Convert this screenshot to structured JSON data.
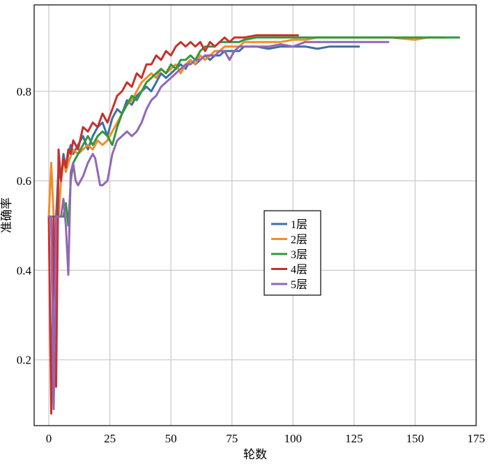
{
  "chart_data": {
    "type": "line",
    "title": "",
    "xlabel": "轮数",
    "ylabel": "准确率",
    "xlim": [
      -6,
      175
    ],
    "ylim": [
      0.053,
      0.993
    ],
    "xticks": [
      0,
      25,
      50,
      75,
      100,
      125,
      150,
      175
    ],
    "yticks": [
      0.2,
      0.4,
      0.6,
      0.8
    ],
    "xtick_labels": [
      "0",
      "25",
      "50",
      "75",
      "100",
      "125",
      "150",
      "175"
    ],
    "ytick_labels": [
      "0.2",
      "0.4",
      "0.6",
      "0.8"
    ],
    "grid": true,
    "legend_position": "center-right",
    "series": [
      {
        "name": "1层",
        "color": "#3e6fa5",
        "points": [
          [
            0,
            0.52
          ],
          [
            1,
            0.52
          ],
          [
            2,
            0.1
          ],
          [
            3,
            0.52
          ],
          [
            4,
            0.63
          ],
          [
            5,
            0.6
          ],
          [
            6,
            0.66
          ],
          [
            7,
            0.63
          ],
          [
            8,
            0.66
          ],
          [
            9,
            0.68
          ],
          [
            10,
            0.66
          ],
          [
            12,
            0.68
          ],
          [
            14,
            0.7
          ],
          [
            16,
            0.67
          ],
          [
            18,
            0.7
          ],
          [
            20,
            0.72
          ],
          [
            22,
            0.73
          ],
          [
            24,
            0.7
          ],
          [
            26,
            0.74
          ],
          [
            28,
            0.76
          ],
          [
            30,
            0.75
          ],
          [
            32,
            0.78
          ],
          [
            34,
            0.77
          ],
          [
            36,
            0.79
          ],
          [
            38,
            0.8
          ],
          [
            40,
            0.81
          ],
          [
            42,
            0.8
          ],
          [
            44,
            0.82
          ],
          [
            46,
            0.84
          ],
          [
            48,
            0.83
          ],
          [
            50,
            0.84
          ],
          [
            52,
            0.85
          ],
          [
            54,
            0.86
          ],
          [
            56,
            0.85
          ],
          [
            58,
            0.87
          ],
          [
            60,
            0.86
          ],
          [
            62,
            0.87
          ],
          [
            64,
            0.88
          ],
          [
            66,
            0.87
          ],
          [
            68,
            0.88
          ],
          [
            70,
            0.88
          ],
          [
            72,
            0.89
          ],
          [
            75,
            0.89
          ],
          [
            78,
            0.89
          ],
          [
            80,
            0.9
          ],
          [
            85,
            0.9
          ],
          [
            90,
            0.895
          ],
          [
            95,
            0.9
          ],
          [
            100,
            0.9
          ],
          [
            105,
            0.9
          ],
          [
            110,
            0.895
          ],
          [
            115,
            0.9
          ],
          [
            120,
            0.9
          ],
          [
            127,
            0.9
          ]
        ]
      },
      {
        "name": "2层",
        "color": "#f28c28",
        "points": [
          [
            0,
            0.52
          ],
          [
            1,
            0.64
          ],
          [
            2,
            0.52
          ],
          [
            3,
            0.52
          ],
          [
            4,
            0.52
          ],
          [
            5,
            0.6
          ],
          [
            6,
            0.65
          ],
          [
            7,
            0.62
          ],
          [
            8,
            0.64
          ],
          [
            10,
            0.67
          ],
          [
            12,
            0.66
          ],
          [
            14,
            0.67
          ],
          [
            16,
            0.68
          ],
          [
            18,
            0.67
          ],
          [
            20,
            0.69
          ],
          [
            22,
            0.68
          ],
          [
            24,
            0.69
          ],
          [
            26,
            0.71
          ],
          [
            28,
            0.73
          ],
          [
            30,
            0.75
          ],
          [
            32,
            0.77
          ],
          [
            34,
            0.78
          ],
          [
            36,
            0.8
          ],
          [
            38,
            0.82
          ],
          [
            40,
            0.83
          ],
          [
            42,
            0.84
          ],
          [
            44,
            0.83
          ],
          [
            46,
            0.85
          ],
          [
            48,
            0.84
          ],
          [
            50,
            0.85
          ],
          [
            52,
            0.86
          ],
          [
            54,
            0.84
          ],
          [
            56,
            0.86
          ],
          [
            58,
            0.87
          ],
          [
            60,
            0.86
          ],
          [
            62,
            0.88
          ],
          [
            64,
            0.87
          ],
          [
            66,
            0.88
          ],
          [
            68,
            0.89
          ],
          [
            70,
            0.89
          ],
          [
            72,
            0.9
          ],
          [
            75,
            0.9
          ],
          [
            78,
            0.9
          ],
          [
            80,
            0.91
          ],
          [
            85,
            0.91
          ],
          [
            90,
            0.91
          ],
          [
            95,
            0.91
          ],
          [
            100,
            0.915
          ],
          [
            105,
            0.915
          ],
          [
            110,
            0.92
          ],
          [
            115,
            0.92
          ],
          [
            120,
            0.92
          ],
          [
            130,
            0.92
          ],
          [
            140,
            0.92
          ],
          [
            150,
            0.915
          ],
          [
            155,
            0.92
          ],
          [
            162,
            0.92
          ]
        ]
      },
      {
        "name": "3层",
        "color": "#2e9a3a",
        "points": [
          [
            0,
            0.52
          ],
          [
            1,
            0.52
          ],
          [
            2,
            0.52
          ],
          [
            3,
            0.52
          ],
          [
            4,
            0.52
          ],
          [
            5,
            0.52
          ],
          [
            6,
            0.52
          ],
          [
            7,
            0.55
          ],
          [
            8,
            0.5
          ],
          [
            9,
            0.6
          ],
          [
            10,
            0.64
          ],
          [
            12,
            0.66
          ],
          [
            14,
            0.68
          ],
          [
            16,
            0.7
          ],
          [
            18,
            0.68
          ],
          [
            20,
            0.7
          ],
          [
            22,
            0.71
          ],
          [
            24,
            0.7
          ],
          [
            26,
            0.68
          ],
          [
            28,
            0.72
          ],
          [
            30,
            0.75
          ],
          [
            32,
            0.77
          ],
          [
            34,
            0.79
          ],
          [
            36,
            0.78
          ],
          [
            38,
            0.8
          ],
          [
            40,
            0.82
          ],
          [
            42,
            0.83
          ],
          [
            44,
            0.84
          ],
          [
            46,
            0.85
          ],
          [
            48,
            0.84
          ],
          [
            50,
            0.86
          ],
          [
            52,
            0.85
          ],
          [
            54,
            0.87
          ],
          [
            56,
            0.87
          ],
          [
            58,
            0.88
          ],
          [
            60,
            0.87
          ],
          [
            62,
            0.89
          ],
          [
            64,
            0.9
          ],
          [
            66,
            0.9
          ],
          [
            68,
            0.9
          ],
          [
            70,
            0.91
          ],
          [
            72,
            0.91
          ],
          [
            75,
            0.91
          ],
          [
            78,
            0.91
          ],
          [
            80,
            0.915
          ],
          [
            85,
            0.92
          ],
          [
            90,
            0.92
          ],
          [
            95,
            0.92
          ],
          [
            100,
            0.92
          ],
          [
            110,
            0.92
          ],
          [
            120,
            0.92
          ],
          [
            130,
            0.92
          ],
          [
            140,
            0.92
          ],
          [
            150,
            0.92
          ],
          [
            160,
            0.92
          ],
          [
            168,
            0.92
          ]
        ]
      },
      {
        "name": "4层",
        "color": "#c9302c",
        "points": [
          [
            0,
            0.52
          ],
          [
            1,
            0.08
          ],
          [
            2,
            0.52
          ],
          [
            3,
            0.14
          ],
          [
            4,
            0.67
          ],
          [
            5,
            0.6
          ],
          [
            6,
            0.65
          ],
          [
            7,
            0.63
          ],
          [
            8,
            0.67
          ],
          [
            9,
            0.66
          ],
          [
            10,
            0.69
          ],
          [
            12,
            0.67
          ],
          [
            14,
            0.72
          ],
          [
            16,
            0.71
          ],
          [
            18,
            0.73
          ],
          [
            20,
            0.72
          ],
          [
            22,
            0.75
          ],
          [
            24,
            0.73
          ],
          [
            26,
            0.76
          ],
          [
            28,
            0.79
          ],
          [
            30,
            0.8
          ],
          [
            32,
            0.82
          ],
          [
            34,
            0.81
          ],
          [
            36,
            0.84
          ],
          [
            38,
            0.83
          ],
          [
            40,
            0.86
          ],
          [
            42,
            0.86
          ],
          [
            44,
            0.88
          ],
          [
            46,
            0.87
          ],
          [
            48,
            0.89
          ],
          [
            50,
            0.88
          ],
          [
            52,
            0.9
          ],
          [
            54,
            0.91
          ],
          [
            56,
            0.9
          ],
          [
            58,
            0.91
          ],
          [
            60,
            0.9
          ],
          [
            62,
            0.91
          ],
          [
            64,
            0.89
          ],
          [
            66,
            0.91
          ],
          [
            68,
            0.9
          ],
          [
            70,
            0.91
          ],
          [
            72,
            0.92
          ],
          [
            74,
            0.91
          ],
          [
            76,
            0.92
          ],
          [
            78,
            0.92
          ],
          [
            80,
            0.92
          ],
          [
            85,
            0.925
          ],
          [
            90,
            0.925
          ],
          [
            95,
            0.925
          ],
          [
            102,
            0.925
          ]
        ]
      },
      {
        "name": "5层",
        "color": "#9466b5",
        "points": [
          [
            0,
            0.52
          ],
          [
            1,
            0.52
          ],
          [
            2,
            0.09
          ],
          [
            3,
            0.52
          ],
          [
            4,
            0.52
          ],
          [
            5,
            0.52
          ],
          [
            6,
            0.56
          ],
          [
            7,
            0.5
          ],
          [
            8,
            0.39
          ],
          [
            9,
            0.62
          ],
          [
            10,
            0.64
          ],
          [
            11,
            0.6
          ],
          [
            12,
            0.59
          ],
          [
            14,
            0.61
          ],
          [
            16,
            0.64
          ],
          [
            18,
            0.66
          ],
          [
            19,
            0.65
          ],
          [
            20,
            0.62
          ],
          [
            21,
            0.59
          ],
          [
            22,
            0.59
          ],
          [
            24,
            0.6
          ],
          [
            26,
            0.66
          ],
          [
            28,
            0.69
          ],
          [
            30,
            0.7
          ],
          [
            32,
            0.71
          ],
          [
            34,
            0.7
          ],
          [
            36,
            0.71
          ],
          [
            38,
            0.73
          ],
          [
            40,
            0.76
          ],
          [
            42,
            0.78
          ],
          [
            44,
            0.79
          ],
          [
            46,
            0.81
          ],
          [
            48,
            0.82
          ],
          [
            50,
            0.83
          ],
          [
            52,
            0.84
          ],
          [
            54,
            0.85
          ],
          [
            56,
            0.86
          ],
          [
            58,
            0.86
          ],
          [
            60,
            0.87
          ],
          [
            62,
            0.87
          ],
          [
            64,
            0.88
          ],
          [
            66,
            0.88
          ],
          [
            68,
            0.88
          ],
          [
            70,
            0.89
          ],
          [
            72,
            0.89
          ],
          [
            74,
            0.87
          ],
          [
            76,
            0.89
          ],
          [
            78,
            0.9
          ],
          [
            80,
            0.9
          ],
          [
            85,
            0.9
          ],
          [
            90,
            0.9
          ],
          [
            95,
            0.905
          ],
          [
            100,
            0.9
          ],
          [
            105,
            0.91
          ],
          [
            110,
            0.91
          ],
          [
            115,
            0.91
          ],
          [
            120,
            0.91
          ],
          [
            125,
            0.91
          ],
          [
            130,
            0.91
          ],
          [
            139,
            0.91
          ]
        ]
      }
    ]
  }
}
